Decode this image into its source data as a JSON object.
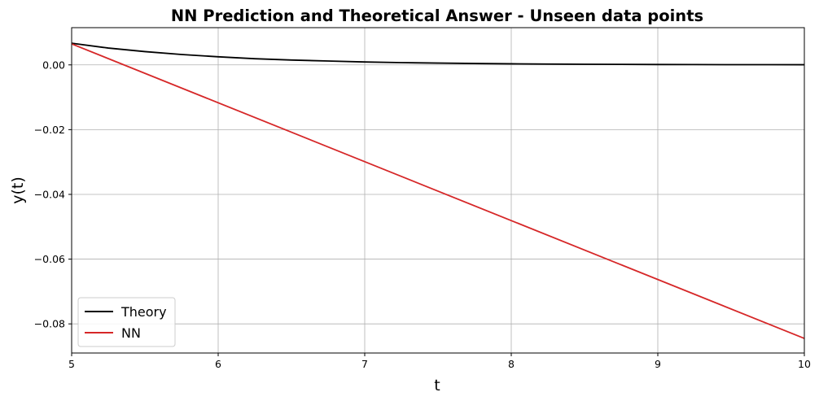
{
  "chart_data": {
    "type": "line",
    "title": "NN Prediction and Theoretical Answer - Unseen data points",
    "xlabel": "t",
    "ylabel": "y(t)",
    "xlim": [
      5,
      10
    ],
    "ylim": [
      -0.089,
      0.0115
    ],
    "x_ticks": [
      5,
      6,
      7,
      8,
      9,
      10
    ],
    "x_tick_labels": [
      "5",
      "6",
      "7",
      "8",
      "9",
      "10"
    ],
    "y_ticks": [
      0.0,
      -0.02,
      -0.04,
      -0.06,
      -0.08
    ],
    "y_tick_labels": [
      "0.00",
      "−0.02",
      "−0.04",
      "−0.06",
      "−0.08"
    ],
    "grid": true,
    "legend_position": "lower-left",
    "series": [
      {
        "name": "Theory",
        "color": "#000000",
        "x": [
          5.0,
          5.25,
          5.5,
          5.75,
          6.0,
          6.25,
          6.5,
          6.75,
          7.0,
          7.25,
          7.5,
          7.75,
          8.0,
          8.25,
          8.5,
          8.75,
          9.0,
          9.25,
          9.5,
          9.75,
          10.0
        ],
        "y": [
          0.0067,
          0.0052,
          0.0041,
          0.0032,
          0.0025,
          0.0019,
          0.0015,
          0.0012,
          0.0009,
          0.0007,
          0.00055,
          0.00043,
          0.00034,
          0.00026,
          0.0002,
          0.00016,
          0.00012,
          0.0001,
          7e-05,
          6e-05,
          5e-05
        ]
      },
      {
        "name": "NN",
        "color": "#d62728",
        "x": [
          5.0,
          10.0
        ],
        "y": [
          0.0065,
          -0.0845
        ]
      }
    ]
  }
}
